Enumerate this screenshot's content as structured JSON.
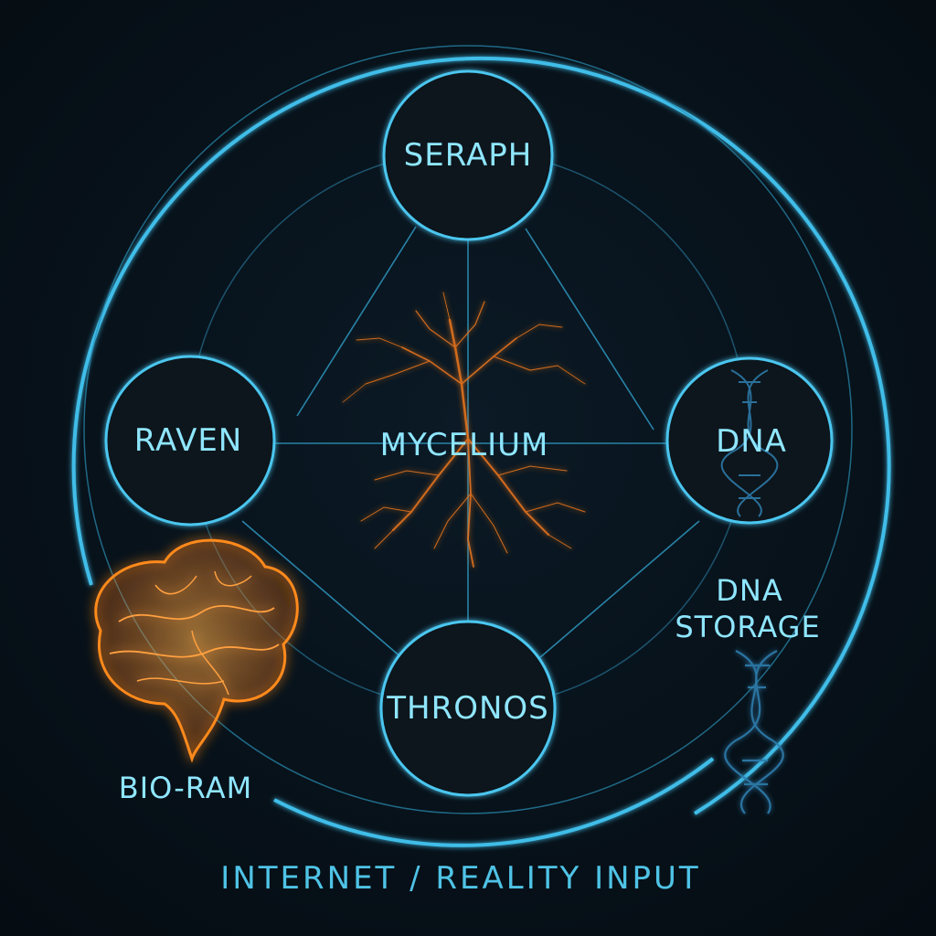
{
  "colors": {
    "background": "#07121b",
    "accent": "#3fbde8",
    "accent_glow": "#7fe0ff",
    "mycelium": "#e8741f",
    "brain": "#ff8a1a"
  },
  "diagram": {
    "center": {
      "label": "MYCELIUM",
      "icon": "mycelium-network-icon"
    },
    "nodes": [
      {
        "id": "seraph",
        "label": "SERAPH"
      },
      {
        "id": "raven",
        "label": "RAVEN"
      },
      {
        "id": "dna",
        "label": "DNA",
        "icon": "dna-helix-icon"
      },
      {
        "id": "thronos",
        "label": "THRONOS"
      }
    ],
    "bio_ram": {
      "label": "BIO-RAM",
      "icon": "brain-icon"
    },
    "dna_storage": {
      "line1": "DNA",
      "line2": "STORAGE",
      "icon": "dna-helix-icon"
    },
    "footer": {
      "label": "INTERNET / REALITY INPUT"
    }
  }
}
